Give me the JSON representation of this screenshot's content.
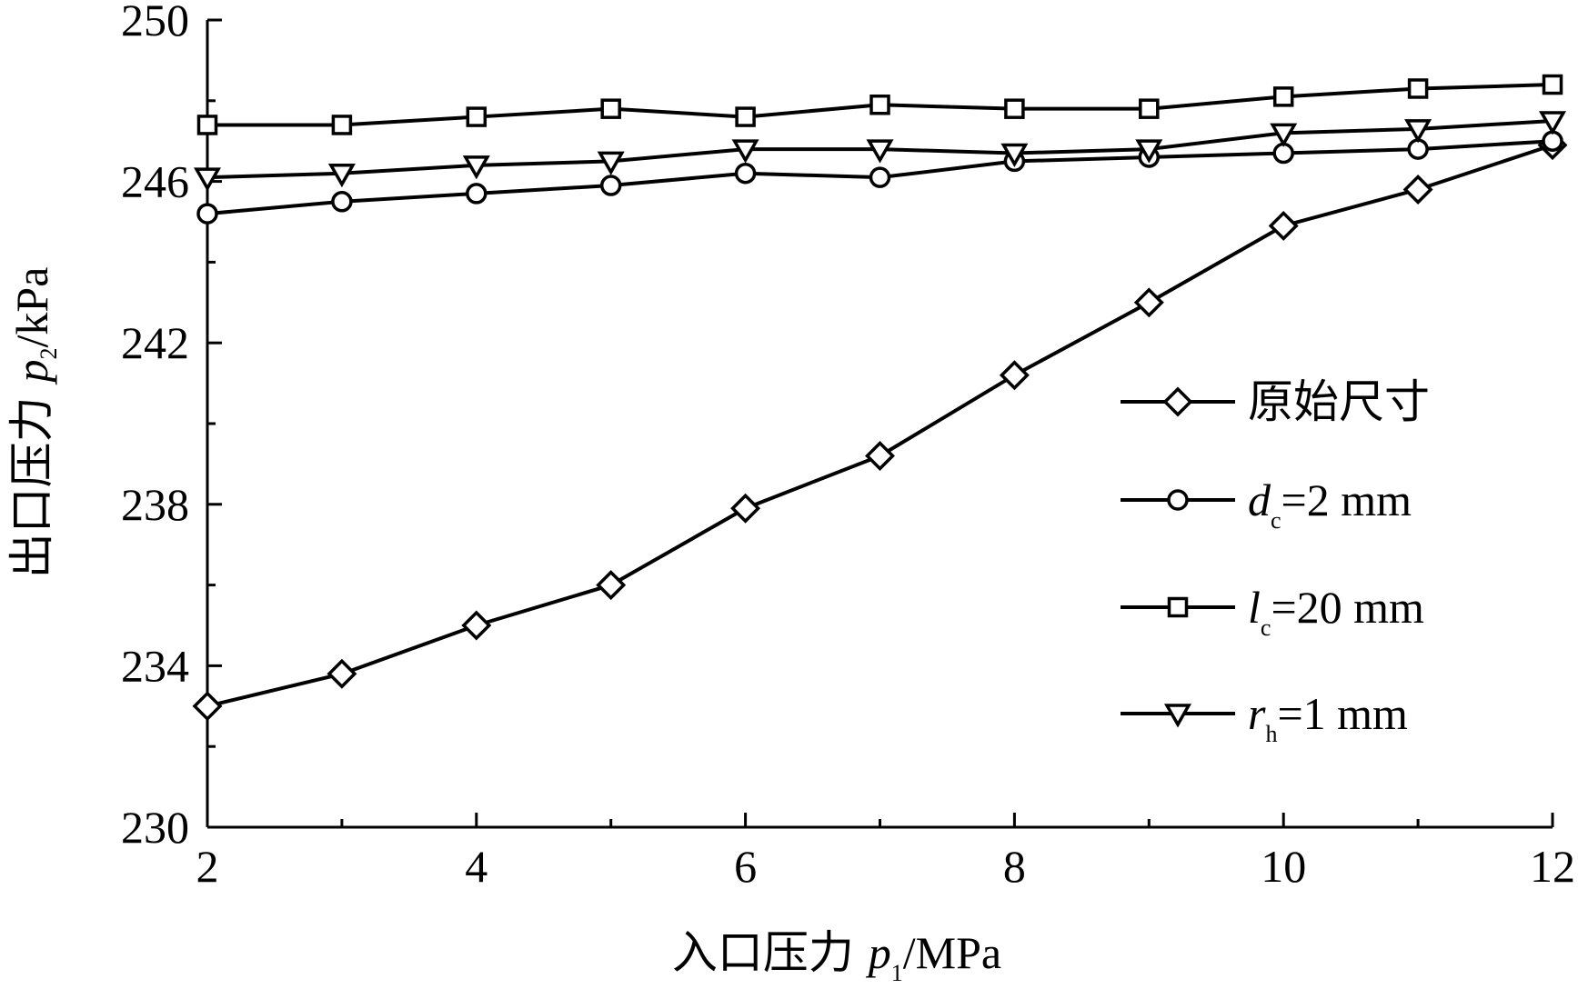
{
  "chart_data": {
    "type": "line",
    "x": [
      2,
      3,
      4,
      5,
      6,
      7,
      8,
      9,
      10,
      11,
      12
    ],
    "xlim": [
      2,
      12
    ],
    "ylim": [
      230,
      250
    ],
    "x_ticks": [
      "2",
      "4",
      "6",
      "8",
      "10",
      "12"
    ],
    "y_ticks": [
      "230",
      "234",
      "238",
      "242",
      "246",
      "250"
    ],
    "xlabel": {
      "prefix": "入口压力 ",
      "var": "p",
      "sub": "1",
      "unit": "/MPa"
    },
    "ylabel": {
      "prefix": "出口压力 ",
      "var": "p",
      "sub": "2",
      "unit": "/kPa"
    },
    "grid": false,
    "legend_position": "center-right",
    "series": [
      {
        "name": "原始尺寸",
        "label": {
          "text": "原始尺寸",
          "var": "",
          "sub": "",
          "rest": ""
        },
        "marker": "diamond",
        "values": [
          233.0,
          233.8,
          235.0,
          236.0,
          237.9,
          239.2,
          241.2,
          243.0,
          244.9,
          245.8,
          246.9
        ]
      },
      {
        "name": "dc=2 mm",
        "label": {
          "text": "",
          "var": "d",
          "sub": "c",
          "rest": "=2 mm"
        },
        "marker": "circle",
        "values": [
          245.2,
          245.5,
          245.7,
          245.9,
          246.2,
          246.1,
          246.5,
          246.6,
          246.7,
          246.8,
          247.0
        ]
      },
      {
        "name": "lc=20 mm",
        "label": {
          "text": "",
          "var": "l",
          "sub": "c",
          "rest": "=20 mm"
        },
        "marker": "square",
        "values": [
          247.4,
          247.4,
          247.6,
          247.8,
          247.6,
          247.9,
          247.8,
          247.8,
          248.1,
          248.3,
          248.4
        ]
      },
      {
        "name": "rh=1 mm",
        "label": {
          "text": "",
          "var": "r",
          "sub": "h",
          "rest": "=1 mm"
        },
        "marker": "triangle-down",
        "values": [
          246.1,
          246.2,
          246.4,
          246.5,
          246.8,
          246.8,
          246.7,
          246.8,
          247.2,
          247.3,
          247.5
        ]
      }
    ],
    "colors": {
      "line": "#000000",
      "marker_fill": "#ffffff",
      "background": "#ffffff"
    }
  }
}
